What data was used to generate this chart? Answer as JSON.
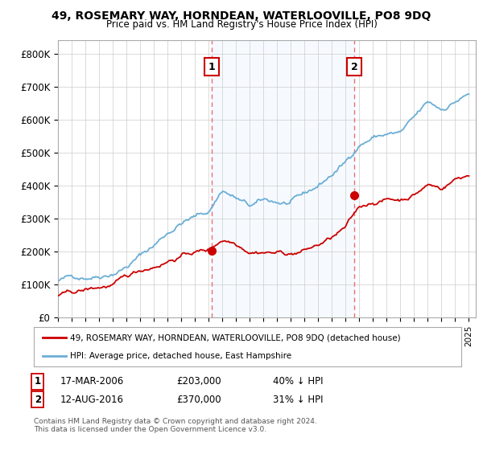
{
  "title": "49, ROSEMARY WAY, HORNDEAN, WATERLOOVILLE, PO8 9DQ",
  "subtitle": "Price paid vs. HM Land Registry's House Price Index (HPI)",
  "ylabel_ticks": [
    "£0",
    "£100K",
    "£200K",
    "£300K",
    "£400K",
    "£500K",
    "£600K",
    "£700K",
    "£800K"
  ],
  "ytick_values": [
    0,
    100000,
    200000,
    300000,
    400000,
    500000,
    600000,
    700000,
    800000
  ],
  "ylim": [
    0,
    840000
  ],
  "xlim_start": 1995.0,
  "xlim_end": 2025.5,
  "hpi_color": "#6baed6",
  "price_color": "#cc0000",
  "marker1_date": 2006.21,
  "marker1_price": 203000,
  "marker2_date": 2016.62,
  "marker2_price": 370000,
  "legend_line1": "49, ROSEMARY WAY, HORNDEAN, WATERLOOVILLE, PO8 9DQ (detached house)",
  "legend_line2": "HPI: Average price, detached house, East Hampshire",
  "table_row1_num": "1",
  "table_row1_date": "17-MAR-2006",
  "table_row1_price": "£203,000",
  "table_row1_pct": "40% ↓ HPI",
  "table_row2_num": "2",
  "table_row2_date": "12-AUG-2016",
  "table_row2_price": "£370,000",
  "table_row2_pct": "31% ↓ HPI",
  "footnote": "Contains HM Land Registry data © Crown copyright and database right 2024.\nThis data is licensed under the Open Government Licence v3.0.",
  "background_color": "#ffffff",
  "plot_bg_color": "#ffffff",
  "shade_color": "#ddeeff",
  "grid_color": "#cccccc"
}
